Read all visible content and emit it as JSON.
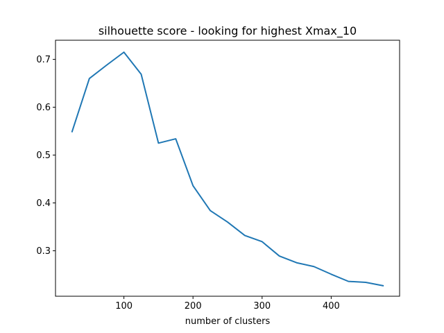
{
  "chart_data": {
    "type": "line",
    "title": "silhouette score - looking for highest Xmax_10",
    "xlabel": "number of clusters",
    "ylabel": "",
    "xlim": [
      1,
      499
    ],
    "ylim": [
      0.205,
      0.74
    ],
    "xticks": [
      100,
      200,
      300,
      400
    ],
    "yticks": [
      0.3,
      0.4,
      0.5,
      0.6,
      0.7
    ],
    "xtick_labels": [
      "100",
      "200",
      "300",
      "400"
    ],
    "ytick_labels": [
      "0.3",
      "0.4",
      "0.5",
      "0.6",
      "0.7"
    ],
    "grid": false,
    "series": [
      {
        "color": "#1f77b4",
        "x": [
          25,
          50,
          75,
          100,
          125,
          150,
          175,
          200,
          225,
          250,
          275,
          300,
          325,
          350,
          375,
          400,
          425,
          450,
          475
        ],
        "y": [
          0.549,
          0.66,
          0.688,
          0.715,
          0.669,
          0.525,
          0.534,
          0.436,
          0.384,
          0.36,
          0.332,
          0.319,
          0.289,
          0.275,
          0.267,
          0.251,
          0.236,
          0.234,
          0.227
        ]
      }
    ]
  }
}
